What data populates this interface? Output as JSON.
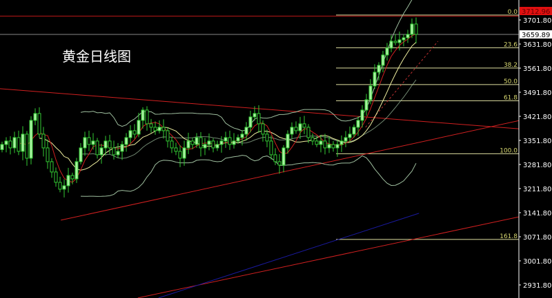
{
  "title": "黄金日线图",
  "chart_data": {
    "type": "candlestick",
    "title": "黄金日线图",
    "ylim": [
      2901.8,
      3729.8
    ],
    "y_ticks": [
      "3701.80",
      "3631.80",
      "3561.80",
      "3491.80",
      "3421.80",
      "3351.80",
      "3281.80",
      "3211.80",
      "3141.80",
      "3071.80",
      "3001.80",
      "2931.80"
    ],
    "y_tick_values": [
      3701.8,
      3631.8,
      3561.8,
      3491.8,
      3421.8,
      3351.8,
      3281.8,
      3211.8,
      3141.8,
      3071.8,
      3001.8,
      2931.8
    ],
    "closes": [
      3340,
      3350,
      3330,
      3360,
      3320,
      3370,
      3300,
      3410,
      3430,
      3370,
      3330,
      3290,
      3260,
      3230,
      3210,
      3220,
      3250,
      3240,
      3290,
      3330,
      3360,
      3340,
      3350,
      3310,
      3330,
      3350,
      3330,
      3310,
      3320,
      3340,
      3360,
      3380,
      3370,
      3410,
      3440,
      3400,
      3390,
      3380,
      3390,
      3380,
      3350,
      3330,
      3320,
      3300,
      3330,
      3350,
      3340,
      3360,
      3330,
      3340,
      3350,
      3330,
      3340,
      3350,
      3360,
      3340,
      3350,
      3360,
      3370,
      3390,
      3420,
      3430,
      3400,
      3370,
      3350,
      3310,
      3290,
      3280,
      3330,
      3370,
      3390,
      3380,
      3400,
      3390,
      3360,
      3350,
      3340,
      3350,
      3330,
      3340,
      3330,
      3340,
      3350,
      3360,
      3370,
      3390,
      3410,
      3440,
      3470,
      3510,
      3550,
      3570,
      3600,
      3620,
      3640,
      3636,
      3644,
      3650,
      3660,
      3690,
      3659.89
    ],
    "price_labels": {
      "high": "3712.96",
      "current": "3659.89"
    },
    "high_price": 3712.96,
    "current_price": 3659.89,
    "fibonacci": [
      {
        "label": "0.0",
        "price": 3716
      },
      {
        "label": "23.6",
        "price": 3621
      },
      {
        "label": "38.2",
        "price": 3562
      },
      {
        "label": "50.0",
        "price": 3514
      },
      {
        "label": "61.8",
        "price": 3467
      },
      {
        "label": "100.0",
        "price": 3313
      },
      {
        "label": "161.8",
        "price": 3064
      }
    ],
    "trendlines": [
      {
        "color": "#d22020",
        "from": [
          -0.5,
          3502
        ],
        "to": [
          132.8,
          3378
        ]
      },
      {
        "color": "#d22020",
        "from": [
          14.2,
          3120
        ],
        "to": [
          132.8,
          3430
        ]
      },
      {
        "color": "#d22020",
        "from": [
          32.8,
          2894
        ],
        "to": [
          132.8,
          3150
        ]
      },
      {
        "color": "#1a1aa0",
        "from": [
          37.8,
          2894
        ],
        "to": [
          100.7,
          3140
        ]
      },
      {
        "color": "#c03030",
        "from": [
          87.8,
          3390
        ],
        "to": [
          105.3,
          3640
        ],
        "dashed": true
      }
    ],
    "indicators": {
      "ma_fast": 5,
      "ma_mid": 10,
      "bollinger_period": 20,
      "bollinger_dev": 2
    },
    "colors": {
      "candle": "#33cc33",
      "up_fill": "#a8f0a0",
      "fib": "#e0e0a0",
      "fib_text": "#d8d870",
      "ma_fast": "#d02020",
      "ma_mid": "#f0f0a0",
      "bands": "#a0c0a0",
      "high_label_bg": "#e01010",
      "axis": "#ffffff"
    }
  }
}
